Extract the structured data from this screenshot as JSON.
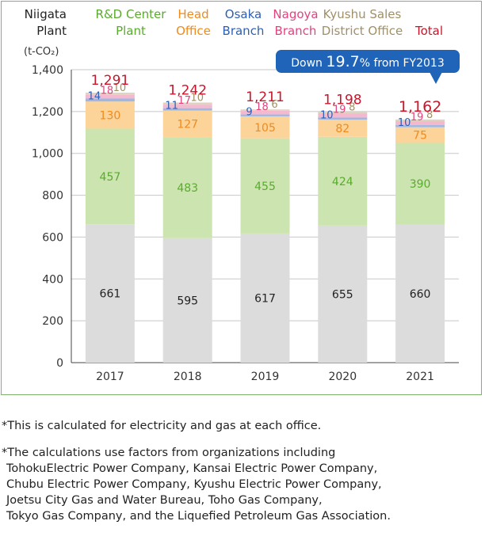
{
  "chart_data": {
    "type": "bar",
    "stacked": true,
    "unit_label": "(t-CO₂)",
    "categories": [
      "2017",
      "2018",
      "2019",
      "2020",
      "2021"
    ],
    "ylim": [
      0,
      1400
    ],
    "yticks": [
      0,
      200,
      400,
      600,
      800,
      1000,
      1200,
      1400
    ],
    "ytick_labels": [
      "0",
      "200",
      "400",
      "600",
      "800",
      "1,000",
      "1,200",
      "1,400"
    ],
    "grid": true,
    "legend_position": "top",
    "series": [
      {
        "name": "Niigata Plant",
        "legend_lines": [
          "Niigata",
          "Plant"
        ],
        "color": "#dcdcdc",
        "label_color": "#222222",
        "values": [
          661,
          595,
          617,
          655,
          660
        ]
      },
      {
        "name": "R&D Center Plant",
        "legend_lines": [
          "R&D Center",
          "Plant"
        ],
        "color": "#cce5b0",
        "label_color": "#5aaa2e",
        "values": [
          457,
          483,
          455,
          424,
          390
        ]
      },
      {
        "name": "Head Office",
        "legend_lines": [
          "Head",
          "Office"
        ],
        "color": "#fcd49a",
        "label_color": "#f08a1c",
        "values": [
          130,
          127,
          105,
          82,
          75
        ]
      },
      {
        "name": "Osaka Branch",
        "legend_lines": [
          "Osaka",
          "Branch"
        ],
        "color": "#9fb8e2",
        "label_color": "#2f5fb3",
        "values": [
          14,
          11,
          9,
          10,
          10
        ]
      },
      {
        "name": "Nagoya Branch",
        "legend_lines": [
          "Nagoya",
          "Branch"
        ],
        "color": "#f5b9cf",
        "label_color": "#e0447f",
        "values": [
          18,
          17,
          18,
          19,
          19
        ]
      },
      {
        "name": "Kyushu Sales District Office",
        "legend_lines": [
          "Kyushu Sales",
          "District Office"
        ],
        "color": "#ddd3be",
        "label_color": "#a09068",
        "values": [
          10,
          10,
          6,
          8,
          8
        ]
      }
    ],
    "totals": {
      "name": "Total",
      "color": "#c8162b",
      "values": [
        1291,
        1242,
        1211,
        1198,
        1162
      ],
      "labels": [
        "1,291",
        "1,242",
        "1,211",
        "1,198",
        "1,162"
      ]
    },
    "callout": {
      "prefix": "Down ",
      "value": "19.7",
      "suffix": "% from FY2013",
      "color": "#1f64b8"
    }
  },
  "notes": {
    "note1": "*This is calculated for electricity and gas at each office.",
    "note2_lines": [
      "*The calculations use factors from organizations including",
      "TohokuElectric Power Company, Kansai Electric Power Company,",
      "Chubu Electric Power Company, Kyushu Electric Power Company,",
      "Joetsu City Gas and Water Bureau, Toho Gas Company,",
      "Tokyo Gas Company, and the Liquefied Petroleum Gas Association."
    ]
  }
}
